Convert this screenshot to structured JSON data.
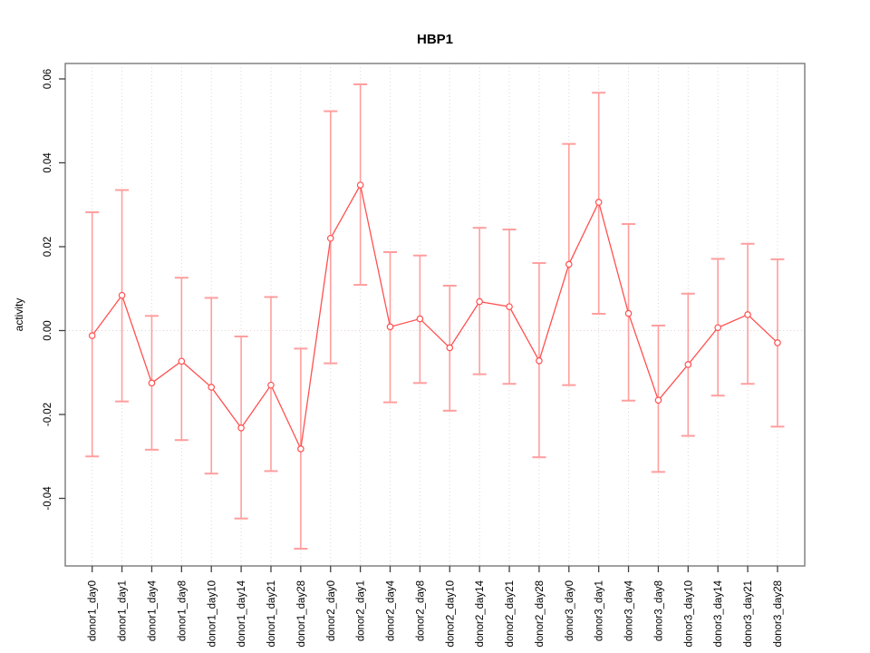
{
  "chart_data": {
    "type": "line",
    "title": "HBP1",
    "xlabel": "",
    "ylabel": "activity",
    "legend": "none",
    "grid": "vertical dotted gridline at each category; horizontal dotted line at y=0",
    "ylim": [
      -0.056,
      0.064
    ],
    "yticks": [
      0.06,
      0.04,
      0.02,
      0.0,
      -0.02,
      -0.04
    ],
    "ytick_labels": [
      "0.06",
      "0.04",
      "0.02",
      "0.00",
      "-0.02",
      "-0.04"
    ],
    "categories": [
      "donor1_day0",
      "donor1_day1",
      "donor1_day4",
      "donor1_day8",
      "donor1_day10",
      "donor1_day14",
      "donor1_day21",
      "donor1_day28",
      "donor2_day0",
      "donor2_day1",
      "donor2_day4",
      "donor2_day8",
      "donor2_day10",
      "donor2_day14",
      "donor2_day21",
      "donor2_day28",
      "donor3_day0",
      "donor3_day1",
      "donor3_day4",
      "donor3_day8",
      "donor3_day10",
      "donor3_day14",
      "donor3_day21",
      "donor3_day28"
    ],
    "series": [
      {
        "name": "activity",
        "values": [
          -0.0012,
          0.0084,
          -0.0125,
          -0.0073,
          -0.0135,
          -0.0232,
          -0.013,
          -0.0282,
          0.022,
          0.0347,
          0.0009,
          0.0028,
          -0.0041,
          0.0069,
          0.0057,
          -0.0072,
          0.0158,
          0.0306,
          0.0041,
          -0.0166,
          -0.0081,
          0.0007,
          0.0038,
          -0.0029
        ],
        "error_upper": [
          0.0282,
          0.0335,
          0.0035,
          0.0126,
          0.0078,
          -0.0014,
          0.008,
          -0.0043,
          0.0523,
          0.0587,
          0.0187,
          0.0179,
          0.0107,
          0.0245,
          0.0241,
          0.0161,
          0.0445,
          0.0567,
          0.0254,
          0.0012,
          0.0088,
          0.0171,
          0.0207,
          0.017
        ],
        "error_lower": [
          -0.03,
          -0.0169,
          -0.0284,
          -0.0261,
          -0.0341,
          -0.0448,
          -0.0335,
          -0.052,
          -0.0078,
          0.0109,
          -0.0171,
          -0.0125,
          -0.0191,
          -0.0104,
          -0.0127,
          -0.0302,
          -0.013,
          0.004,
          -0.0167,
          -0.0337,
          -0.0251,
          -0.0155,
          -0.0127,
          -0.0229
        ]
      }
    ],
    "colors": {
      "line": "#ff5050",
      "marker_fill": "#ffffff",
      "whisker": "#ff9e9e",
      "grid": "#d9d9d9",
      "zero_line": "#e8cfcf",
      "box": "#828282",
      "tick": "#404040",
      "text": "#000000"
    }
  }
}
